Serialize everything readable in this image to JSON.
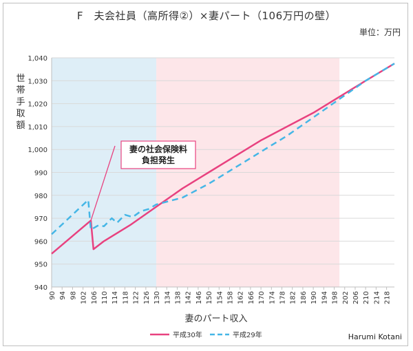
{
  "chart_data": {
    "type": "line",
    "title": "F　夫会社員（高所得②）×妻パート（106万円の壁）",
    "unit_label": "単位：万円",
    "xlabel": "妻のパート収入",
    "ylabel": "世帯手取額",
    "ylim": [
      940,
      1040
    ],
    "y_ticks": [
      "940",
      "950",
      "960",
      "970",
      "980",
      "990",
      "1,000",
      "1,010",
      "1,020",
      "1,030",
      "1,040"
    ],
    "x_ticks": [
      90,
      94,
      98,
      102,
      106,
      110,
      114,
      118,
      122,
      126,
      130,
      134,
      138,
      142,
      146,
      150,
      154,
      158,
      162,
      166,
      170,
      174,
      178,
      182,
      186,
      190,
      194,
      198,
      202,
      206,
      210,
      214,
      218
    ],
    "xlim": [
      90,
      221
    ],
    "regions": [
      {
        "from": 90,
        "to": 130,
        "color": "#deeef7"
      },
      {
        "from": 130,
        "to": 200,
        "color": "#fde6e9"
      }
    ],
    "annotation": {
      "lines": [
        "妻の社会保険料",
        "負担発生"
      ],
      "point": [
        105,
        969
      ]
    },
    "series": [
      {
        "name": "平成30年",
        "color": "#e8417f",
        "dash": false,
        "points": [
          [
            90,
            954.5
          ],
          [
            105,
            969
          ],
          [
            106,
            956.5
          ],
          [
            110,
            960
          ],
          [
            120,
            967
          ],
          [
            130,
            975
          ],
          [
            140,
            983
          ],
          [
            150,
            990
          ],
          [
            160,
            997
          ],
          [
            170,
            1004
          ],
          [
            180,
            1010
          ],
          [
            190,
            1016
          ],
          [
            200,
            1023
          ],
          [
            210,
            1030
          ],
          [
            221,
            1037.5
          ]
        ]
      },
      {
        "name": "平成29年",
        "color": "#45b6e6",
        "dash": true,
        "points": [
          [
            90,
            963
          ],
          [
            104,
            978
          ],
          [
            105,
            965
          ],
          [
            108,
            967
          ],
          [
            110,
            966.5
          ],
          [
            113,
            970
          ],
          [
            115,
            968
          ],
          [
            118,
            971.5
          ],
          [
            121,
            970.5
          ],
          [
            124,
            973
          ],
          [
            127,
            974
          ],
          [
            130,
            976
          ],
          [
            140,
            979
          ],
          [
            150,
            985
          ],
          [
            160,
            992
          ],
          [
            170,
            999
          ],
          [
            180,
            1006
          ],
          [
            190,
            1014
          ],
          [
            200,
            1022
          ],
          [
            210,
            1030
          ],
          [
            221,
            1037.5
          ]
        ]
      }
    ]
  },
  "author": "Harumi Kotani"
}
